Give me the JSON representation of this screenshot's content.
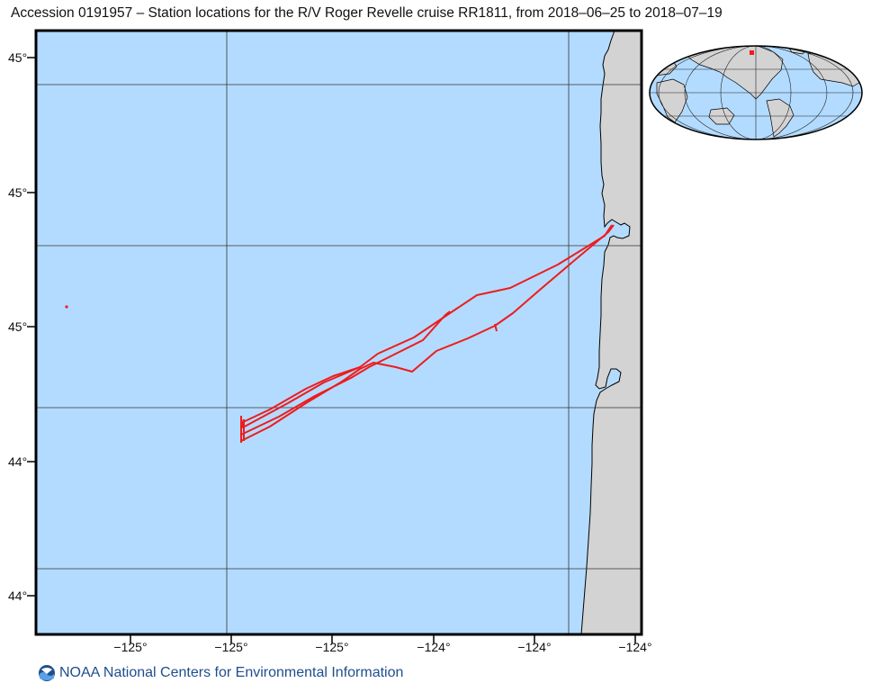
{
  "title": "Accession 0191957 – Station locations for the R/V Roger Revelle cruise RR1811, from 2018–06–25 to 2018–07–19",
  "footer": {
    "text": "NOAA National Centers for Environmental Information",
    "logo_icon": "noaa-logo-icon"
  },
  "colors": {
    "ocean": "#b3dbff",
    "land": "#d3d3d3",
    "track": "#ee1c1c",
    "grid": "#222222",
    "frame": "#000000"
  },
  "map": {
    "lat_tick_labels": [
      "45°",
      "45°",
      "45°",
      "44°",
      "44°"
    ],
    "lon_tick_labels": [
      "−125°",
      "−125°",
      "−125°",
      "−124°",
      "−124°"
    ],
    "stations_note": ""
  },
  "inset": {
    "type": "world-locator",
    "marker_color": "#ee1c1c"
  }
}
